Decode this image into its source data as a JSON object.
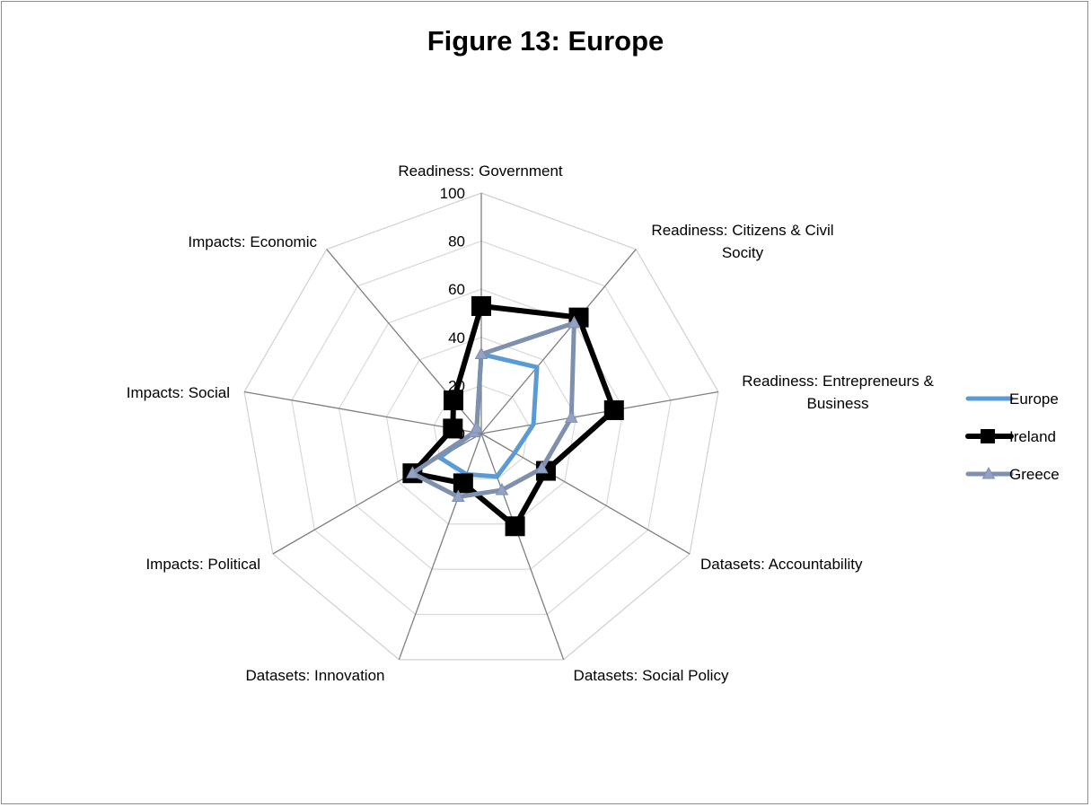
{
  "chart_data": {
    "type": "radar",
    "title": "Figure 13: Europe",
    "categories": [
      "Readiness: Government",
      "Readiness: Citizens & Civil Socity",
      "Readiness: Entrepreneurs & Business",
      "Datasets: Accountability",
      "Datasets: Social Policy",
      "Datasets: Innovation",
      "Impacts: Political",
      "Impacts: Social",
      "Impacts: Economic"
    ],
    "category_lines": [
      [
        "Readiness: Government"
      ],
      [
        "Readiness: Citizens & Civil",
        "Socity"
      ],
      [
        "Readiness: Entrepreneurs &",
        "Business"
      ],
      [
        "Datasets: Accountability"
      ],
      [
        "Datasets: Social Policy"
      ],
      [
        "Datasets: Innovation"
      ],
      [
        "Impacts: Political"
      ],
      [
        "Impacts: Social"
      ],
      [
        "Impacts: Economic"
      ]
    ],
    "rlim": [
      0,
      100
    ],
    "ticks": [
      0,
      20,
      40,
      60,
      80,
      100
    ],
    "tick_labels": [
      "0",
      "20",
      "40",
      "60",
      "80",
      "100"
    ],
    "grid": true,
    "legend_position": "right",
    "series": [
      {
        "name": "Europe",
        "color": "#5b9bd5",
        "marker": "none",
        "values": [
          33,
          36,
          22,
          16,
          19,
          18,
          20,
          3,
          3
        ]
      },
      {
        "name": "Ireland",
        "color": "#000000",
        "marker": "square",
        "values": [
          53,
          63,
          56,
          31,
          41,
          22,
          33,
          12,
          18
        ]
      },
      {
        "name": "Greece",
        "color": "#7f8fae",
        "marker": "triangle",
        "values": [
          33,
          60,
          38,
          29,
          25,
          28,
          33,
          3,
          3
        ]
      }
    ]
  }
}
